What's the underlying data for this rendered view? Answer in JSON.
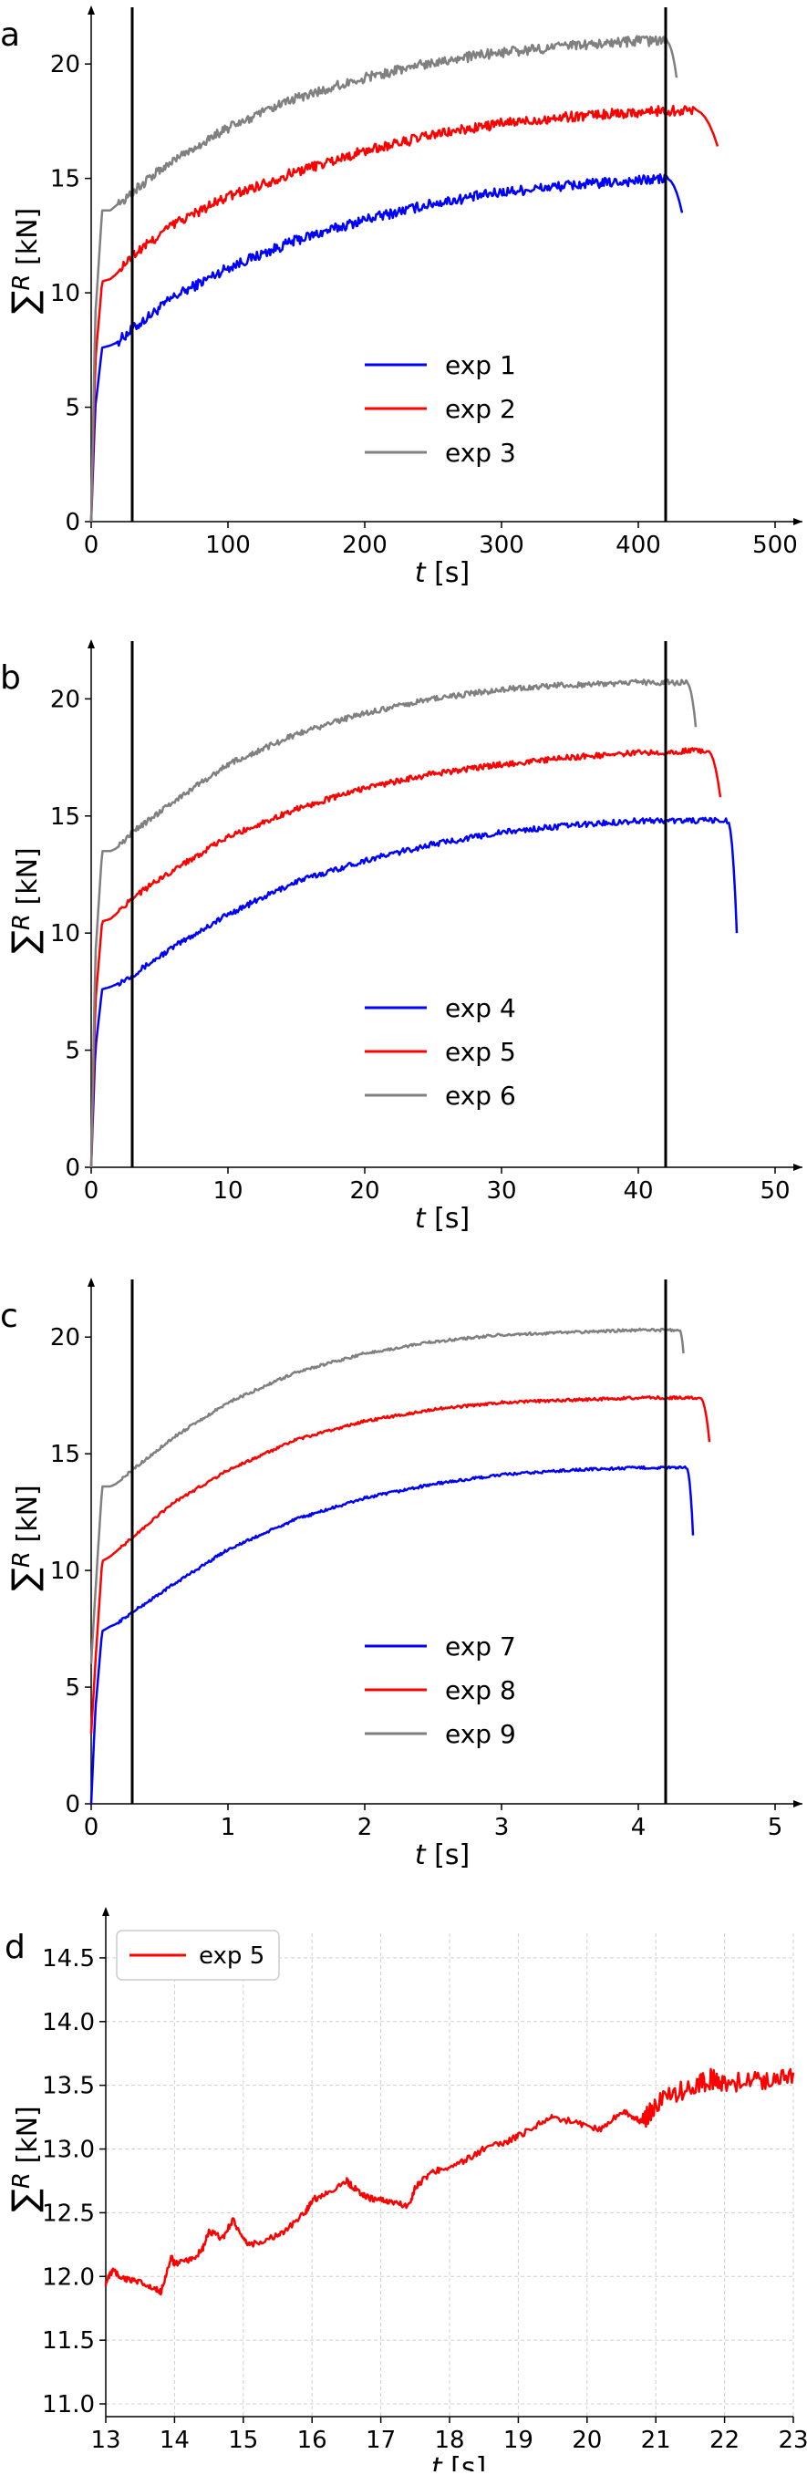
{
  "chart_data": [
    {
      "panel_label": "a",
      "type": "line",
      "xlabel_italic": "t",
      "xlabel_unit": "[s]",
      "ylabel_sigma": "∑",
      "ylabel_italic": "R",
      "ylabel_unit": "[kN]",
      "xlim": [
        0,
        500
      ],
      "ylim": [
        0,
        22
      ],
      "xticks": [
        0,
        100,
        200,
        300,
        400,
        500
      ],
      "yticks": [
        0,
        5,
        10,
        15,
        20
      ],
      "vlines": [
        30,
        420
      ],
      "grid": false,
      "legend_position": "center",
      "series": [
        {
          "name": "exp 1",
          "color": "#0000ff",
          "t_end": 432,
          "drop_to": 13.5,
          "x": [
            0,
            3,
            8,
            14,
            18,
            30,
            60,
            100,
            150,
            200,
            250,
            300,
            350,
            400,
            420
          ],
          "y": [
            0,
            5,
            7.6,
            7.7,
            7.8,
            8.4,
            9.8,
            11.1,
            12.3,
            13.2,
            13.9,
            14.4,
            14.7,
            14.9,
            15.0
          ]
        },
        {
          "name": "exp 2",
          "color": "#ff0000",
          "t_end": 458,
          "drop_to": 16.4,
          "x": [
            0,
            3,
            8,
            14,
            18,
            30,
            60,
            100,
            150,
            200,
            250,
            300,
            350,
            400,
            440
          ],
          "y": [
            0,
            7,
            10.5,
            10.6,
            10.8,
            11.6,
            13.0,
            14.2,
            15.3,
            16.2,
            16.9,
            17.4,
            17.7,
            17.9,
            18.0
          ]
        },
        {
          "name": "exp 3",
          "color": "#808080",
          "t_end": 428,
          "drop_to": 19.4,
          "x": [
            0,
            3,
            8,
            14,
            18,
            30,
            60,
            100,
            150,
            200,
            250,
            300,
            350,
            400,
            420
          ],
          "y": [
            0,
            9,
            13.6,
            13.6,
            13.8,
            14.4,
            15.8,
            17.2,
            18.5,
            19.4,
            20.1,
            20.5,
            20.8,
            21.0,
            21.0
          ]
        }
      ]
    },
    {
      "panel_label": "b",
      "type": "line",
      "xlabel_italic": "t",
      "xlabel_unit": "[s]",
      "ylabel_sigma": "∑",
      "ylabel_italic": "R",
      "ylabel_unit": "[kN]",
      "xlim": [
        0,
        50
      ],
      "ylim": [
        0,
        22
      ],
      "xticks": [
        0,
        10,
        20,
        30,
        40,
        50
      ],
      "yticks": [
        0,
        5,
        10,
        15,
        20
      ],
      "vlines": [
        3,
        42
      ],
      "grid": false,
      "legend_position": "center",
      "series": [
        {
          "name": "exp 4",
          "color": "#0000ff",
          "t_end": 47.2,
          "drop_to": 10.0,
          "x": [
            0,
            0.3,
            0.8,
            1.4,
            1.8,
            3,
            6,
            10,
            15,
            20,
            25,
            30,
            35,
            40,
            46.5
          ],
          "y": [
            0,
            5,
            7.6,
            7.7,
            7.8,
            8.2,
            9.4,
            10.8,
            12.2,
            13.1,
            13.8,
            14.3,
            14.6,
            14.8,
            14.8
          ]
        },
        {
          "name": "exp 5",
          "color": "#ff0000",
          "t_end": 46.0,
          "drop_to": 15.8,
          "x": [
            0,
            0.3,
            0.8,
            1.4,
            1.8,
            3,
            6,
            10,
            15,
            20,
            25,
            30,
            35,
            40,
            45
          ],
          "y": [
            0,
            7,
            10.5,
            10.6,
            10.8,
            11.5,
            12.7,
            14.1,
            15.3,
            16.2,
            16.8,
            17.2,
            17.5,
            17.7,
            17.8
          ]
        },
        {
          "name": "exp 6",
          "color": "#808080",
          "t_end": 44.2,
          "drop_to": 18.8,
          "x": [
            0,
            0.3,
            0.8,
            1.4,
            1.8,
            3,
            6,
            10,
            15,
            20,
            25,
            30,
            35,
            40,
            43.5
          ],
          "y": [
            0,
            9,
            13.5,
            13.5,
            13.6,
            14.3,
            15.6,
            17.2,
            18.5,
            19.4,
            20.0,
            20.4,
            20.6,
            20.7,
            20.7
          ]
        }
      ]
    },
    {
      "panel_label": "c",
      "type": "line",
      "xlabel_italic": "t",
      "xlabel_unit": "[s]",
      "ylabel_sigma": "∑",
      "ylabel_italic": "R",
      "ylabel_unit": "[kN]",
      "xlim": [
        0,
        5
      ],
      "ylim": [
        0,
        22
      ],
      "xticks": [
        0,
        1,
        2,
        3,
        4,
        5
      ],
      "yticks": [
        0,
        5,
        10,
        15,
        20
      ],
      "vlines": [
        0.3,
        4.2
      ],
      "grid": false,
      "legend_position": "center",
      "series": [
        {
          "name": "exp 7",
          "color": "#0000ff",
          "t_end": 4.4,
          "drop_to": 11.5,
          "x": [
            0,
            0.03,
            0.08,
            0.14,
            0.18,
            0.3,
            0.6,
            1.0,
            1.5,
            2.0,
            2.5,
            3.0,
            3.5,
            4.0,
            4.35
          ],
          "y": [
            0,
            4,
            7.4,
            7.6,
            7.7,
            8.2,
            9.4,
            10.9,
            12.2,
            13.1,
            13.7,
            14.1,
            14.3,
            14.4,
            14.4
          ]
        },
        {
          "name": "exp 8",
          "color": "#ff0000",
          "t_end": 4.52,
          "drop_to": 15.5,
          "x": [
            0,
            0.03,
            0.08,
            0.14,
            0.18,
            0.3,
            0.6,
            1.0,
            1.5,
            2.0,
            2.5,
            3.0,
            3.5,
            4.0,
            4.45
          ],
          "y": [
            3,
            6,
            10.4,
            10.6,
            10.8,
            11.4,
            12.9,
            14.3,
            15.6,
            16.4,
            16.9,
            17.2,
            17.3,
            17.4,
            17.4
          ]
        },
        {
          "name": "exp 9",
          "color": "#808080",
          "t_end": 4.33,
          "drop_to": 19.3,
          "x": [
            0,
            0.03,
            0.08,
            0.14,
            0.18,
            0.3,
            0.6,
            1.0,
            1.5,
            2.0,
            2.5,
            3.0,
            3.5,
            4.0,
            4.3
          ],
          "y": [
            6,
            9,
            13.6,
            13.6,
            13.7,
            14.3,
            15.7,
            17.2,
            18.5,
            19.3,
            19.8,
            20.1,
            20.2,
            20.3,
            20.3
          ]
        }
      ]
    },
    {
      "panel_label": "d",
      "type": "line",
      "xlabel_italic": "t",
      "xlabel_unit": "[s]",
      "ylabel_sigma": "∑",
      "ylabel_italic": "R",
      "ylabel_unit": "[kN]",
      "xlim": [
        13,
        23
      ],
      "ylim": [
        10.9,
        14.8
      ],
      "xticks": [
        13,
        14,
        15,
        16,
        17,
        18,
        19,
        20,
        21,
        22,
        23
      ],
      "yticks": [
        11.0,
        11.5,
        12.0,
        12.5,
        13.0,
        13.5,
        14.0,
        14.5
      ],
      "ytick_labels": [
        "11.0",
        "11.5",
        "12.0",
        "12.5",
        "13.0",
        "13.5",
        "14.0",
        "14.5"
      ],
      "vlines": [],
      "grid": true,
      "legend_position": "top-left",
      "series": [
        {
          "name": "exp 5",
          "color": "#ff0000",
          "x": [
            13.0,
            13.1,
            13.2,
            13.3,
            13.5,
            13.7,
            13.8,
            13.95,
            14.0,
            14.2,
            14.4,
            14.5,
            14.7,
            14.85,
            15.0,
            15.1,
            15.4,
            15.6,
            15.9,
            16.0,
            16.2,
            16.5,
            16.6,
            16.8,
            17.0,
            17.2,
            17.4,
            17.5,
            17.7,
            17.9,
            18.2,
            18.5,
            18.8,
            19.0,
            19.3,
            19.5,
            19.9,
            20.2,
            20.5,
            20.7,
            20.8,
            21.0,
            21.3,
            21.6,
            21.8,
            22.0,
            22.4,
            22.7,
            23.0
          ],
          "y": [
            11.95,
            12.05,
            12.0,
            11.98,
            11.95,
            11.9,
            11.88,
            12.15,
            12.1,
            12.12,
            12.2,
            12.35,
            12.3,
            12.45,
            12.28,
            12.25,
            12.3,
            12.35,
            12.5,
            12.6,
            12.65,
            12.75,
            12.7,
            12.62,
            12.6,
            12.58,
            12.55,
            12.7,
            12.8,
            12.85,
            12.9,
            13.0,
            13.05,
            13.1,
            13.2,
            13.25,
            13.2,
            13.15,
            13.3,
            13.25,
            13.2,
            13.35,
            13.45,
            13.5,
            13.55,
            13.5,
            13.55,
            13.55,
            13.6
          ]
        }
      ]
    }
  ]
}
